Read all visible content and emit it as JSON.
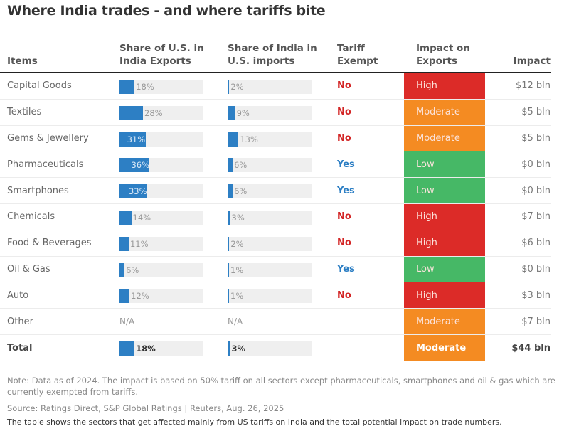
{
  "title": "Where India trades - and where tariffs bite",
  "headers": {
    "items": "Items",
    "share_us_line1": "Share of U.S. in",
    "share_us_line2": "India Exports",
    "share_india_line1": "Share of India in",
    "share_india_line2": "U.S. imports",
    "tariff_line1": "Tariff",
    "tariff_line2": "Exempt",
    "impact_exports_line1": "Impact on",
    "impact_exports_line2": "Exports",
    "impact": "Impact"
  },
  "colors": {
    "bar": "#2d7fc4",
    "high": "#dc2b28",
    "moderate": "#f48b22",
    "low": "#46b866",
    "yes": "#2d7fc4",
    "no": "#d32626"
  },
  "rows": [
    {
      "item": "Capital Goods",
      "share_us": 18,
      "share_us_label": "18%",
      "share_india": 2,
      "share_india_label": "2%",
      "exempt": "No",
      "impact_level": "High",
      "impact_value": "$12 bln"
    },
    {
      "item": "Textiles",
      "share_us": 28,
      "share_us_label": "28%",
      "share_india": 9,
      "share_india_label": "9%",
      "exempt": "No",
      "impact_level": "Moderate",
      "impact_value": "$5 bln"
    },
    {
      "item": "Gems & Jewellery",
      "share_us": 31,
      "share_us_label": "31%",
      "share_india": 13,
      "share_india_label": "13%",
      "exempt": "No",
      "impact_level": "Moderate",
      "impact_value": "$5 bln"
    },
    {
      "item": "Pharmaceuticals",
      "share_us": 36,
      "share_us_label": "36%",
      "share_india": 6,
      "share_india_label": "6%",
      "exempt": "Yes",
      "impact_level": "Low",
      "impact_value": "$0 bln"
    },
    {
      "item": "Smartphones",
      "share_us": 33,
      "share_us_label": "33%",
      "share_india": 6,
      "share_india_label": "6%",
      "exempt": "Yes",
      "impact_level": "Low",
      "impact_value": "$0 bln"
    },
    {
      "item": "Chemicals",
      "share_us": 14,
      "share_us_label": "14%",
      "share_india": 3,
      "share_india_label": "3%",
      "exempt": "No",
      "impact_level": "High",
      "impact_value": "$7 bln"
    },
    {
      "item": "Food & Beverages",
      "share_us": 11,
      "share_us_label": "11%",
      "share_india": 2,
      "share_india_label": "2%",
      "exempt": "No",
      "impact_level": "High",
      "impact_value": "$6 bln"
    },
    {
      "item": "Oil & Gas",
      "share_us": 6,
      "share_us_label": "6%",
      "share_india": 1,
      "share_india_label": "1%",
      "exempt": "Yes",
      "impact_level": "Low",
      "impact_value": "$0 bln"
    },
    {
      "item": "Auto",
      "share_us": 12,
      "share_us_label": "12%",
      "share_india": 1,
      "share_india_label": "1%",
      "exempt": "No",
      "impact_level": "High",
      "impact_value": "$3 bln"
    },
    {
      "item": "Other",
      "share_us": null,
      "share_us_label": "N/A",
      "share_india": null,
      "share_india_label": "N/A",
      "exempt": "",
      "impact_level": "Moderate",
      "impact_value": "$7 bln"
    },
    {
      "item": "Total",
      "share_us": 18,
      "share_us_label": "18%",
      "share_india": 3,
      "share_india_label": "3%",
      "exempt": "",
      "impact_level": "Moderate",
      "impact_value": "$44 bln",
      "total": true
    }
  ],
  "footer": {
    "note": "Note: Data as of 2024. The impact is based on 50% tariff on all sectors except pharmaceuticals, smartphones and oil & gas which are currently exempted from tariffs.",
    "source": "Source: Ratings Direct, S&P Global Ratings | Reuters, Aug. 26, 2025",
    "caption": "The table shows the sectors that get affected mainly from US tariffs on India and the total potential impact on trade numbers."
  }
}
